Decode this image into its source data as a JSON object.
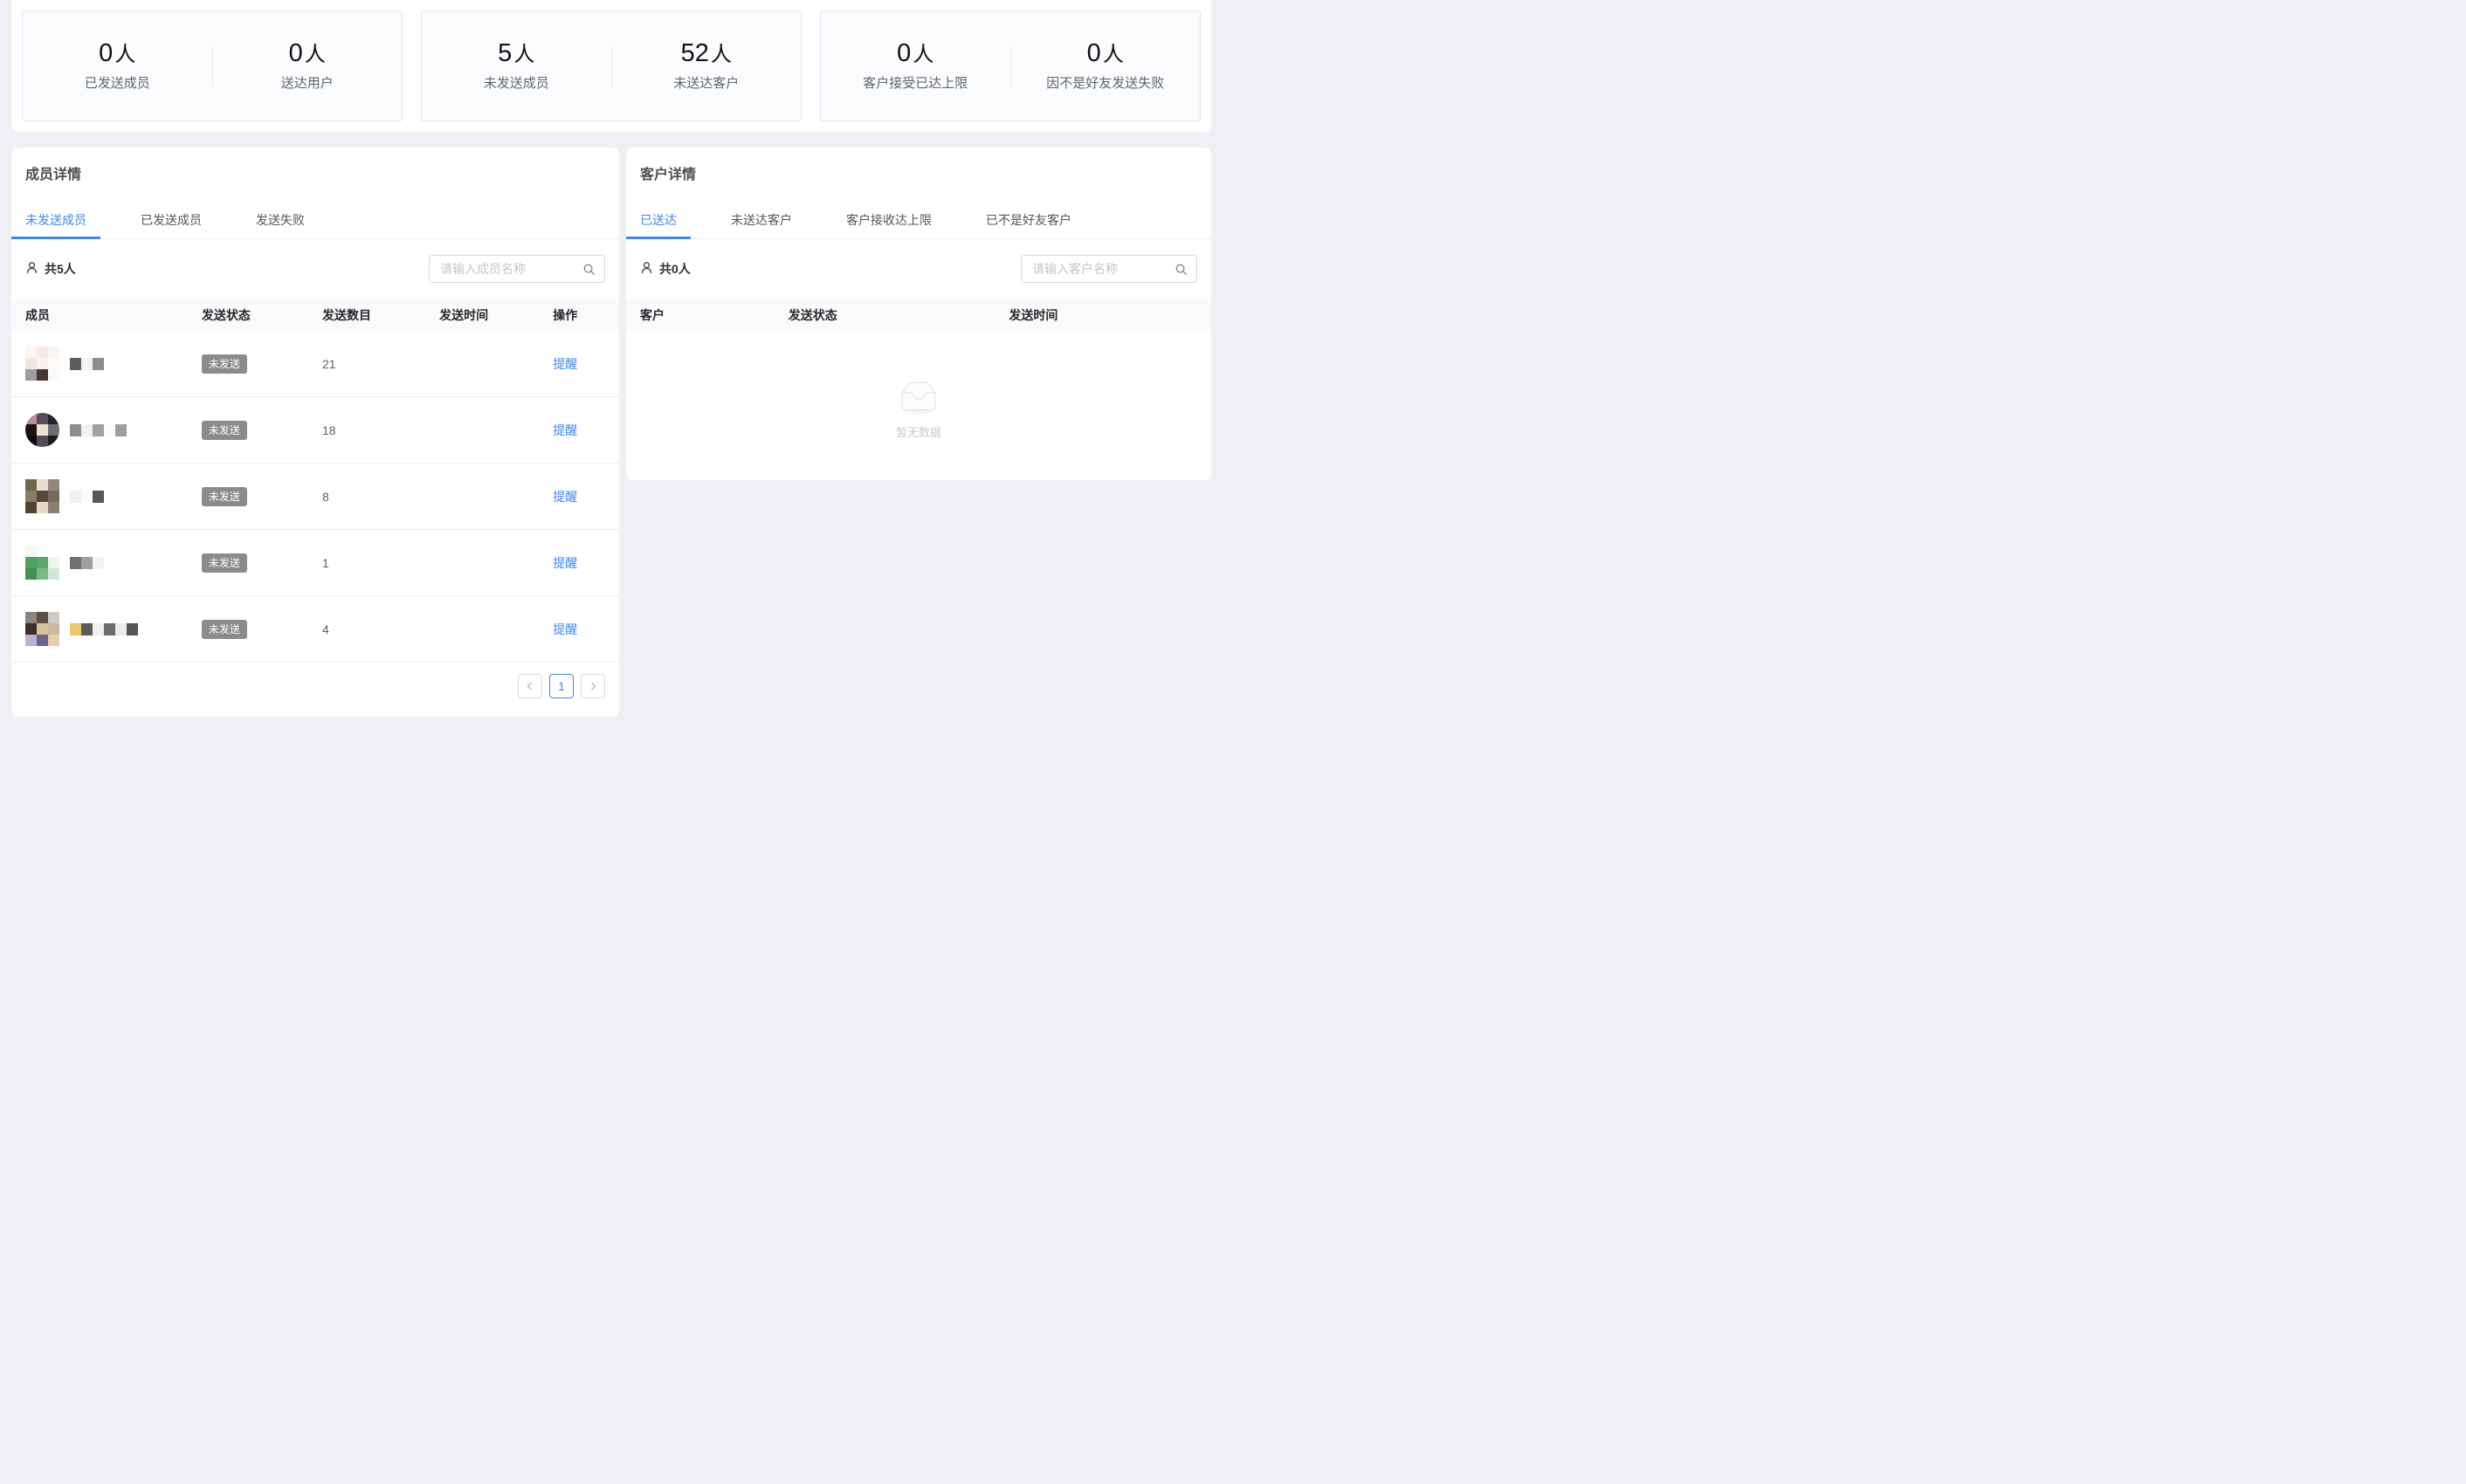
{
  "colors": {
    "accent_blue": "#3d87f5",
    "page_bg": "#eef0f3",
    "card_border": "#dde8f6",
    "card_bg": "#fbfcfe",
    "badge_bg": "#8b8b8b"
  },
  "icons": {
    "person": "person-icon",
    "search": "search-icon",
    "chevron_left": "chevron-left-icon",
    "chevron_right": "chevron-right-icon",
    "empty_box": "empty-box-icon"
  },
  "stats_cards": [
    {
      "items": [
        {
          "value": "0",
          "unit": "人",
          "label": "已发送成员"
        },
        {
          "value": "0",
          "unit": "人",
          "label": "送达用户"
        }
      ]
    },
    {
      "items": [
        {
          "value": "5",
          "unit": "人",
          "label": "未发送成员"
        },
        {
          "value": "52",
          "unit": "人",
          "label": "未送达客户"
        }
      ]
    },
    {
      "items": [
        {
          "value": "0",
          "unit": "人",
          "label": "客户接受已达上限"
        },
        {
          "value": "0",
          "unit": "人",
          "label": "因不是好友发送失败"
        }
      ]
    }
  ],
  "member_panel": {
    "title": "成员详情",
    "tabs": [
      {
        "label": "未发送成员",
        "active": true
      },
      {
        "label": "已发送成员",
        "active": false
      },
      {
        "label": "发送失败",
        "active": false
      }
    ],
    "count": "共5人",
    "search_placeholder": "请输入成员名称",
    "columns": [
      "成员",
      "发送状态",
      "发送数目",
      "发送时间",
      "操作"
    ],
    "rows": [
      {
        "status": "未发送",
        "count": "21",
        "time": "",
        "action": "提醒",
        "avatar": {
          "shape": "square",
          "cells": [
            "#fdf7f4",
            "#f8e9e5",
            "#fcf4f1",
            "#f4e4e1",
            "#fbf1ee",
            "#fefcfb",
            "#9c9c9c",
            "#45382f",
            "#fdf9f7"
          ]
        },
        "name_blocks": [
          "#5e5e5e",
          "#f3f3f3",
          "#8d8d8d"
        ]
      },
      {
        "status": "未发送",
        "count": "18",
        "time": "",
        "action": "提醒",
        "avatar": {
          "shape": "circle",
          "cells": [
            "#ba9093",
            "#564e5c",
            "#23242f",
            "#191513",
            "#ece2d0",
            "#6f6d73",
            "#0e0b0c",
            "#4f4f53",
            "#1c1b20"
          ]
        },
        "name_blocks": [
          "#8e8e90",
          "#f1f1f1",
          "#a2a2a2",
          "#fafafa",
          "#9e9e9e"
        ]
      },
      {
        "status": "未发送",
        "count": "8",
        "time": "",
        "action": "提醒",
        "avatar": {
          "shape": "square",
          "cells": [
            "#75654f",
            "#e8ddd0",
            "#91887a",
            "#8a7b66",
            "#55483a",
            "#756a5e",
            "#4f4336",
            "#e6dac6",
            "#8b8070"
          ]
        },
        "name_blocks": [
          "#f0f0f0",
          "#fbfbfb",
          "#575757"
        ]
      },
      {
        "status": "未发送",
        "count": "1",
        "time": "",
        "action": "提醒",
        "avatar": {
          "shape": "square",
          "cells": [
            "#f3f8f1",
            "#fcfefb",
            "#ffffff",
            "#4f9f5f",
            "#5aa869",
            "#eef5ec",
            "#419152",
            "#7ab987",
            "#d3e7d6"
          ]
        },
        "name_blocks": [
          "#707070",
          "#a0a0a0",
          "#f3f3f3"
        ]
      },
      {
        "status": "未发送",
        "count": "4",
        "time": "",
        "action": "提醒",
        "avatar": {
          "shape": "square",
          "cells": [
            "#8a8580",
            "#5e4f46",
            "#d0c9c3",
            "#3b2f29",
            "#d9c29a",
            "#cbb9a5",
            "#b9b3d1",
            "#6a638e",
            "#e4cfa9"
          ]
        },
        "name_blocks": [
          "#e9c969",
          "#5b5b5b",
          "#f0f0f0",
          "#6c6c6c",
          "#ececec",
          "#555555"
        ]
      }
    ],
    "pagination": {
      "current": "1"
    }
  },
  "customer_panel": {
    "title": "客户详情",
    "tabs": [
      {
        "label": "已送达",
        "active": true
      },
      {
        "label": "未送达客户",
        "active": false
      },
      {
        "label": "客户接收达上限",
        "active": false
      },
      {
        "label": "已不是好友客户",
        "active": false
      }
    ],
    "count": "共0人",
    "search_placeholder": "请输入客户名称",
    "columns": [
      "客户",
      "发送状态",
      "发送时间"
    ],
    "empty_text": "暂无数据"
  }
}
